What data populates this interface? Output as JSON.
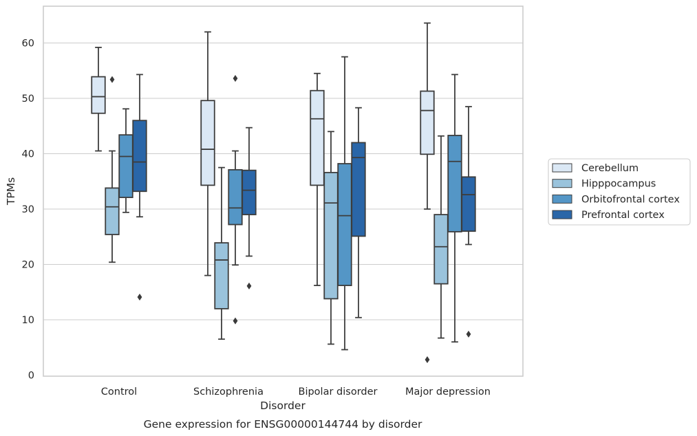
{
  "caption": "Gene expression for ENSG00000144744 by disorder",
  "chart_data": {
    "type": "box",
    "xlabel": "Disorder",
    "ylabel": "TPMs",
    "ylim": [
      0,
      67
    ],
    "yticks": [
      0,
      10,
      20,
      30,
      40,
      50,
      60
    ],
    "grid": "horizontal",
    "legend_position": "right",
    "categories": [
      "Control",
      "Schizophrenia",
      "Bipolar disorder",
      "Major depression"
    ],
    "series": [
      {
        "name": "Cerebellum",
        "color": "#dbe8f5",
        "boxes": [
          {
            "whisker_low": 40.5,
            "q1": 47.3,
            "median": 50.3,
            "q3": 53.9,
            "whisker_high": 59.2,
            "outliers": []
          },
          {
            "whisker_low": 18.0,
            "q1": 34.3,
            "median": 40.8,
            "q3": 49.6,
            "whisker_high": 62.0,
            "outliers": []
          },
          {
            "whisker_low": 16.2,
            "q1": 34.3,
            "median": 46.3,
            "q3": 51.4,
            "whisker_high": 54.5,
            "outliers": []
          },
          {
            "whisker_low": 30.0,
            "q1": 39.9,
            "median": 47.8,
            "q3": 51.3,
            "whisker_high": 63.6,
            "outliers": [
              2.8
            ]
          }
        ]
      },
      {
        "name": "Hipppocampus",
        "color": "#9ac3dc",
        "boxes": [
          {
            "whisker_low": 20.4,
            "q1": 25.4,
            "median": 30.4,
            "q3": 33.8,
            "whisker_high": 40.5,
            "outliers": [
              53.4
            ]
          },
          {
            "whisker_low": 6.5,
            "q1": 12.0,
            "median": 20.8,
            "q3": 23.9,
            "whisker_high": 37.5,
            "outliers": []
          },
          {
            "whisker_low": 5.6,
            "q1": 13.8,
            "median": 31.1,
            "q3": 36.6,
            "whisker_high": 44.0,
            "outliers": []
          },
          {
            "whisker_low": 6.7,
            "q1": 16.5,
            "median": 23.2,
            "q3": 29.0,
            "whisker_high": 43.2,
            "outliers": []
          }
        ]
      },
      {
        "name": "Orbitofrontal cortex",
        "color": "#5496c6",
        "boxes": [
          {
            "whisker_low": 29.4,
            "q1": 32.1,
            "median": 39.5,
            "q3": 43.4,
            "whisker_high": 48.1,
            "outliers": []
          },
          {
            "whisker_low": 19.9,
            "q1": 27.2,
            "median": 30.2,
            "q3": 37.1,
            "whisker_high": 40.5,
            "outliers": [
              53.6,
              9.8
            ]
          },
          {
            "whisker_low": 4.6,
            "q1": 16.2,
            "median": 28.8,
            "q3": 38.2,
            "whisker_high": 57.5,
            "outliers": []
          },
          {
            "whisker_low": 6.0,
            "q1": 25.9,
            "median": 38.6,
            "q3": 43.3,
            "whisker_high": 54.3,
            "outliers": []
          }
        ]
      },
      {
        "name": "Prefrontal cortex",
        "color": "#2a66a8",
        "boxes": [
          {
            "whisker_low": 28.6,
            "q1": 33.2,
            "median": 38.5,
            "q3": 46.0,
            "whisker_high": 54.3,
            "outliers": [
              14.1
            ]
          },
          {
            "whisker_low": 21.5,
            "q1": 29.0,
            "median": 33.4,
            "q3": 37.0,
            "whisker_high": 44.7,
            "outliers": [
              16.1
            ]
          },
          {
            "whisker_low": 10.4,
            "q1": 25.1,
            "median": 39.3,
            "q3": 42.0,
            "whisker_high": 48.3,
            "outliers": []
          },
          {
            "whisker_low": 23.6,
            "q1": 26.0,
            "median": 32.6,
            "q3": 35.8,
            "whisker_high": 48.5,
            "outliers": [
              7.4
            ]
          }
        ]
      }
    ]
  }
}
